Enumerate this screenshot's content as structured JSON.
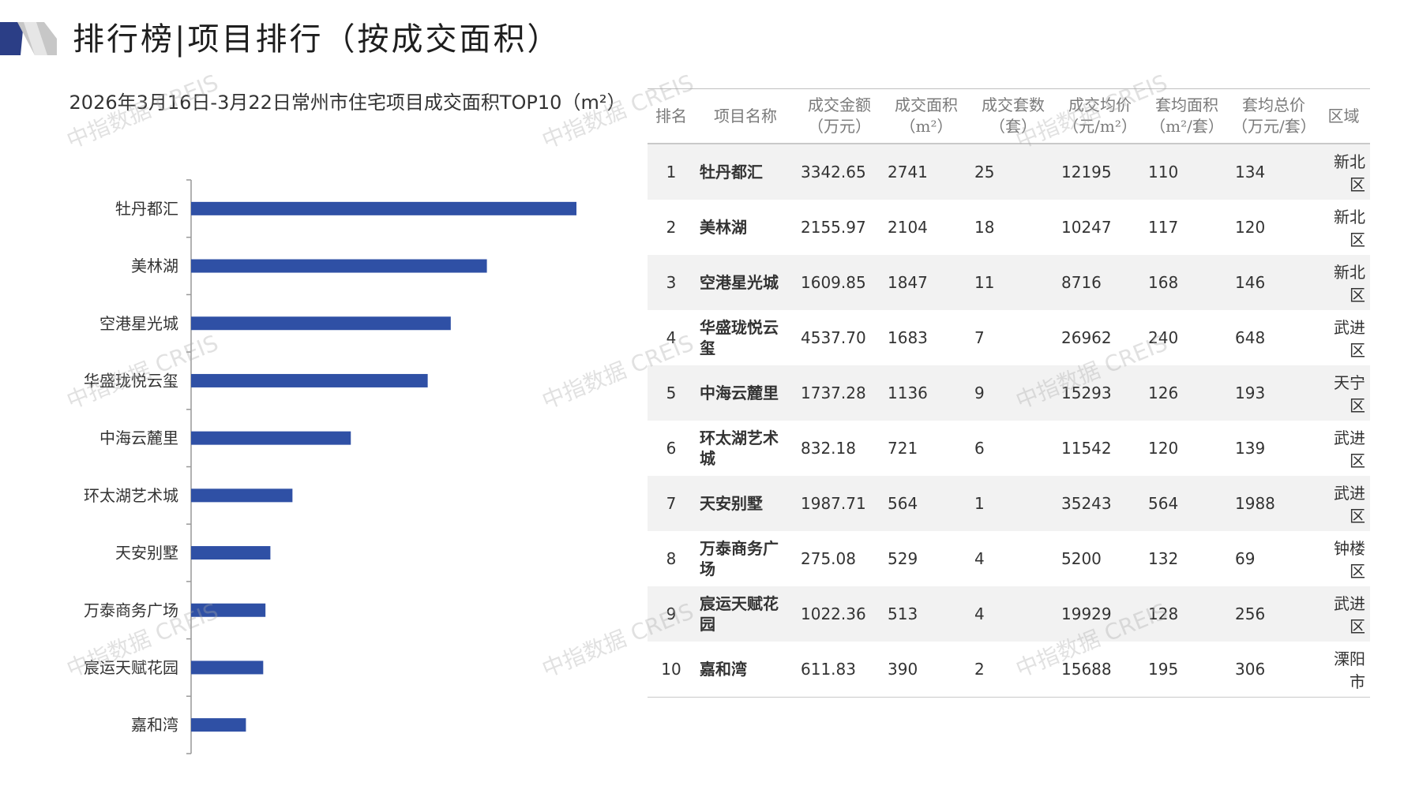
{
  "page_title": "排行榜|项目排行（按成交面积）",
  "watermark_text": "中指数据 CREIS",
  "colors": {
    "bar": "#2f50a5",
    "accent_dark": "#2b3e86",
    "accent_gray": "#b5b5b5"
  },
  "chart_data": {
    "type": "bar",
    "orientation": "horizontal",
    "title": "2026年3月16日-3月22日常州市住宅项目成交面积TOP10（m²）",
    "categories": [
      "牡丹都汇",
      "美林湖",
      "空港星光城",
      "华盛珑悦云玺",
      "中海云麓里",
      "环太湖艺术城",
      "天安别墅",
      "万泰商务广场",
      "宸运天赋花园",
      "嘉和湾"
    ],
    "values": [
      2741,
      2104,
      1847,
      1683,
      1136,
      721,
      564,
      529,
      513,
      390
    ],
    "grid": false,
    "legend": "none"
  },
  "table": {
    "headers": [
      [
        "排名"
      ],
      [
        "项目名称"
      ],
      [
        "成交金额",
        "（万元）"
      ],
      [
        "成交面积",
        "（m²）"
      ],
      [
        "成交套数",
        "（套）"
      ],
      [
        "成交均价",
        "（元/m²）"
      ],
      [
        "套均面积",
        "（m²/套）"
      ],
      [
        "套均总价",
        "（万元/套）"
      ],
      [
        "区域"
      ]
    ],
    "rows": [
      [
        "1",
        "牡丹都汇",
        "3342.65",
        "2741",
        "25",
        "12195",
        "110",
        "134",
        "新北区"
      ],
      [
        "2",
        "美林湖",
        "2155.97",
        "2104",
        "18",
        "10247",
        "117",
        "120",
        "新北区"
      ],
      [
        "3",
        "空港星光城",
        "1609.85",
        "1847",
        "11",
        "8716",
        "168",
        "146",
        "新北区"
      ],
      [
        "4",
        "华盛珑悦云玺",
        "4537.70",
        "1683",
        "7",
        "26962",
        "240",
        "648",
        "武进区"
      ],
      [
        "5",
        "中海云麓里",
        "1737.28",
        "1136",
        "9",
        "15293",
        "126",
        "193",
        "天宁区"
      ],
      [
        "6",
        "环太湖艺术城",
        "832.18",
        "721",
        "6",
        "11542",
        "120",
        "139",
        "武进区"
      ],
      [
        "7",
        "天安别墅",
        "1987.71",
        "564",
        "1",
        "35243",
        "564",
        "1988",
        "武进区"
      ],
      [
        "8",
        "万泰商务广场",
        "275.08",
        "529",
        "4",
        "5200",
        "132",
        "69",
        "钟楼区"
      ],
      [
        "9",
        "宸运天赋花园",
        "1022.36",
        "513",
        "4",
        "19929",
        "128",
        "256",
        "武进区"
      ],
      [
        "10",
        "嘉和湾",
        "611.83",
        "390",
        "2",
        "15688",
        "195",
        "306",
        "溧阳市"
      ]
    ]
  }
}
